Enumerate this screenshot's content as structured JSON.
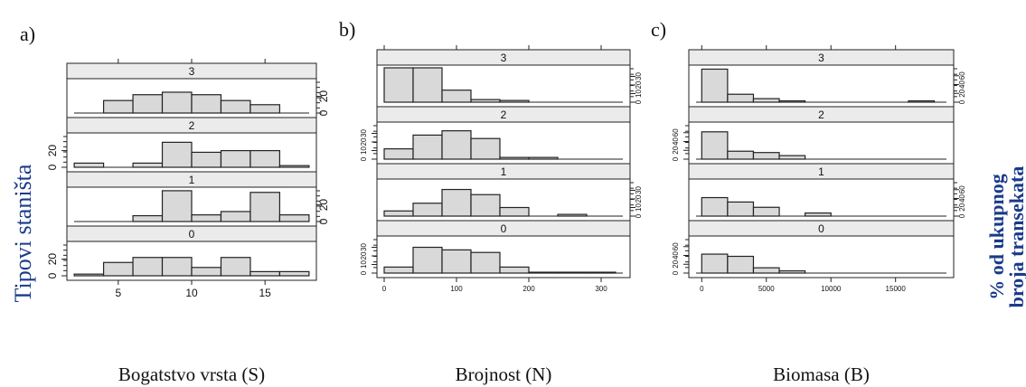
{
  "figure": {
    "y_title": "Tipovi staništa",
    "right_title_line1": "% od ukupnog",
    "right_title_line2": "broja transekata",
    "colors": {
      "bar_fill": "#d9d9d9",
      "strip_fill": "#ebebeb",
      "line": "#222222"
    }
  },
  "chart_data": [
    {
      "type": "bar",
      "panel_letter": "a)",
      "xlabel": "Bogatstvo vrsta (S)",
      "xlim": [
        1.5,
        18.5
      ],
      "x_ticks": [
        5,
        10,
        15
      ],
      "ylim": [
        0,
        38
      ],
      "y_ticks": [
        0,
        20
      ],
      "bin_edges": [
        2,
        4,
        6,
        8,
        10,
        12,
        14,
        16,
        18
      ],
      "series": [
        {
          "name": "3",
          "values": [
            0,
            15,
            22,
            25,
            22,
            15,
            10,
            0
          ]
        },
        {
          "name": "2",
          "values": [
            5,
            0,
            5,
            30,
            18,
            20,
            20,
            2
          ]
        },
        {
          "name": "1",
          "values": [
            0,
            0,
            7,
            37,
            8,
            12,
            35,
            8
          ]
        },
        {
          "name": "0",
          "values": [
            2,
            16,
            22,
            22,
            10,
            22,
            5,
            5
          ]
        }
      ]
    },
    {
      "type": "bar",
      "panel_letter": "b)",
      "xlabel": "Brojnost (N)",
      "xlim": [
        -10,
        340
      ],
      "x_ticks": [
        0,
        100,
        200,
        300
      ],
      "ylim": [
        0,
        40
      ],
      "y_ticks": [
        0,
        10,
        20,
        30
      ],
      "bin_edges": [
        0,
        40,
        80,
        120,
        160,
        200,
        240,
        280,
        320
      ],
      "series": [
        {
          "name": "3",
          "values": [
            40,
            40,
            14,
            3,
            2,
            0,
            0,
            0
          ]
        },
        {
          "name": "2",
          "values": [
            12,
            28,
            33,
            24,
            2,
            2,
            0,
            0
          ]
        },
        {
          "name": "1",
          "values": [
            6,
            15,
            31,
            25,
            10,
            0,
            2,
            0
          ]
        },
        {
          "name": "0",
          "values": [
            7,
            30,
            27,
            24,
            7,
            1,
            1,
            1
          ]
        }
      ]
    },
    {
      "type": "bar",
      "panel_letter": "c)",
      "xlabel": "Biomasa (B)",
      "xlim": [
        -1000,
        19500
      ],
      "x_ticks": [
        0,
        5000,
        10000,
        15000
      ],
      "ylim": [
        0,
        78
      ],
      "y_ticks": [
        0,
        20,
        40,
        60
      ],
      "bin_edges": [
        0,
        2000,
        4000,
        6000,
        8000,
        10000,
        12000,
        14000,
        16000,
        18000
      ],
      "series": [
        {
          "name": "3",
          "values": [
            75,
            18,
            8,
            3,
            0,
            0,
            0,
            0,
            3
          ]
        },
        {
          "name": "2",
          "values": [
            62,
            18,
            15,
            8,
            0,
            0,
            0,
            0,
            0
          ]
        },
        {
          "name": "1",
          "values": [
            42,
            32,
            20,
            0,
            7,
            0,
            0,
            0,
            0
          ]
        },
        {
          "name": "0",
          "values": [
            43,
            38,
            12,
            5,
            0,
            0,
            0,
            0,
            0
          ]
        }
      ]
    }
  ]
}
